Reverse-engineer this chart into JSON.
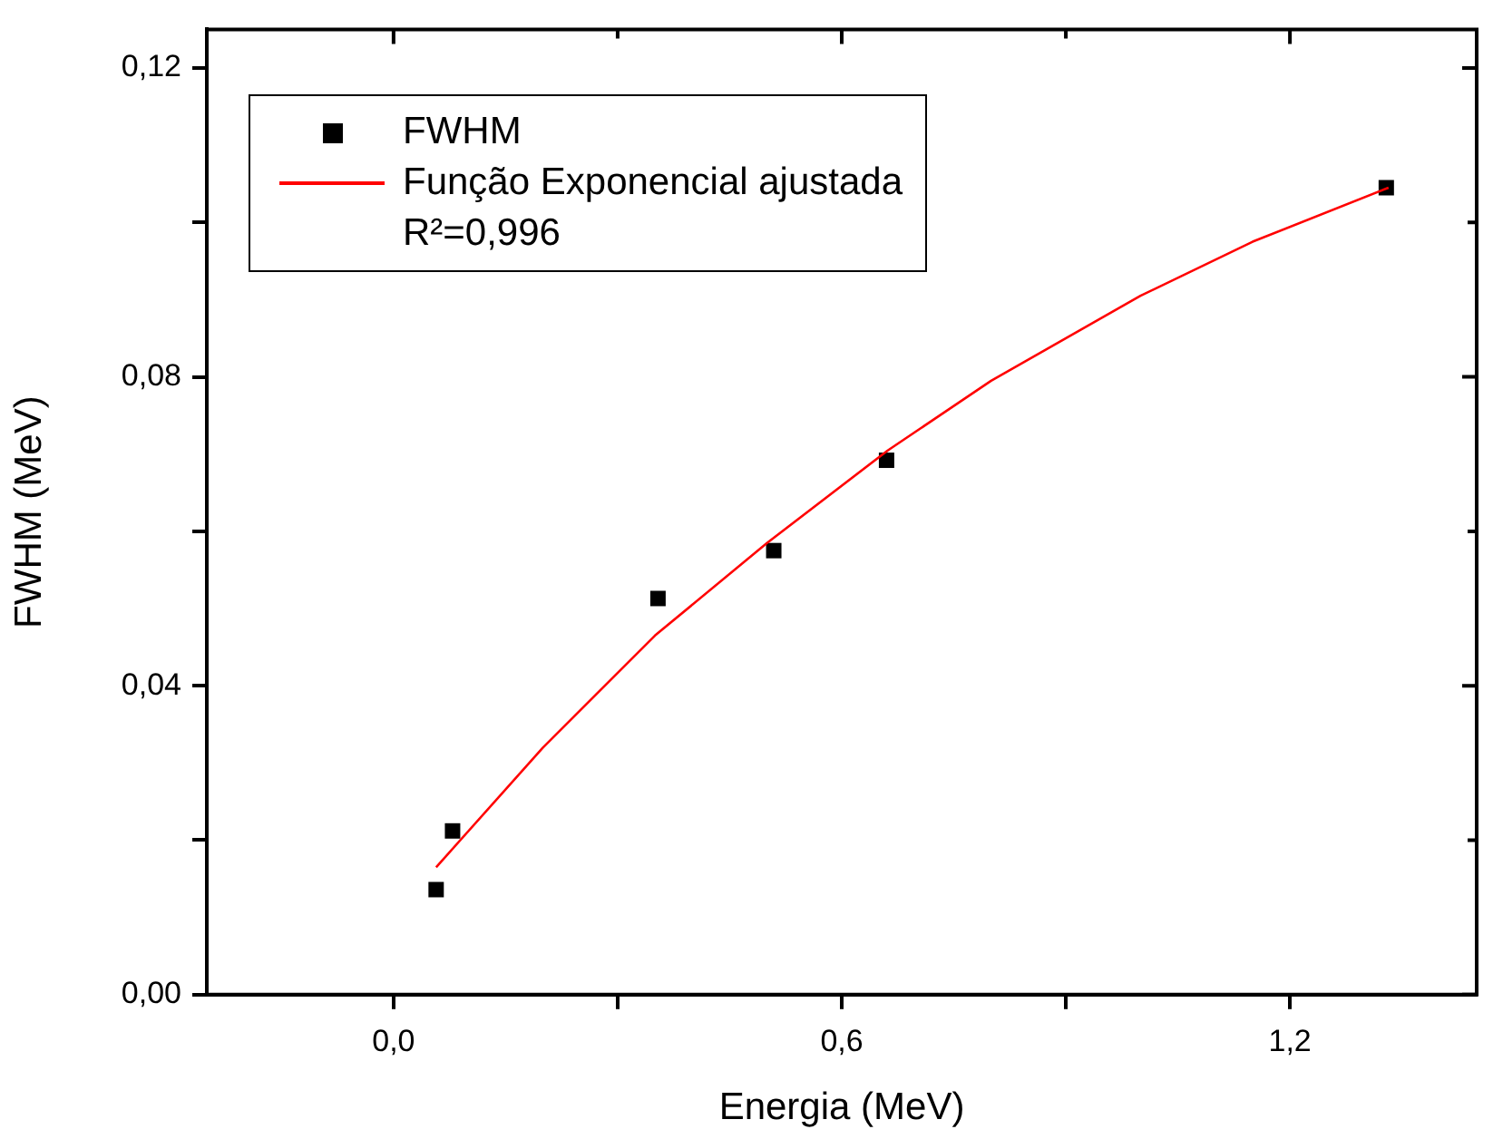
{
  "chart_data": {
    "type": "scatter",
    "xlabel": "Energia (MeV)",
    "ylabel": "FWHM (MeV)",
    "xlim": [
      -0.25,
      1.45
    ],
    "ylim": [
      0,
      0.125
    ],
    "xticks": [
      {
        "value": 0,
        "label": "0,0"
      },
      {
        "value": 0.3,
        "label": null
      },
      {
        "value": 0.6,
        "label": "0,6"
      },
      {
        "value": 0.9,
        "label": null
      },
      {
        "value": 1.2,
        "label": "1,2"
      }
    ],
    "yticks": [
      {
        "value": 0,
        "label": "0,00"
      },
      {
        "value": 0.02,
        "label": null
      },
      {
        "value": 0.04,
        "label": "0,04"
      },
      {
        "value": 0.06,
        "label": null
      },
      {
        "value": 0.08,
        "label": "0,08"
      },
      {
        "value": 0.1,
        "label": null
      },
      {
        "value": 0.12,
        "label": "0,12"
      }
    ],
    "grid": false,
    "legend": "top left",
    "marker": "square",
    "annotations": [
      "R²=0,996"
    ],
    "series": [
      {
        "name": "FWHM",
        "color": "#000000",
        "x": [
          0.057,
          0.079,
          0.354,
          0.509,
          0.66,
          1.329
        ],
        "values": [
          0.0136,
          0.0212,
          0.0513,
          0.0575,
          0.0692,
          0.1045
        ]
      },
      {
        "name": "Função Exponencial ajustada",
        "type": "line",
        "color": "#ff0000",
        "marker": "none",
        "x": [
          0.057,
          0.2,
          0.35,
          0.5,
          0.662,
          0.8,
          1.0,
          1.15,
          1.332
        ],
        "values": [
          0.0165,
          0.032,
          0.0465,
          0.0585,
          0.0705,
          0.0795,
          0.0905,
          0.0975,
          0.1045
        ]
      }
    ]
  }
}
